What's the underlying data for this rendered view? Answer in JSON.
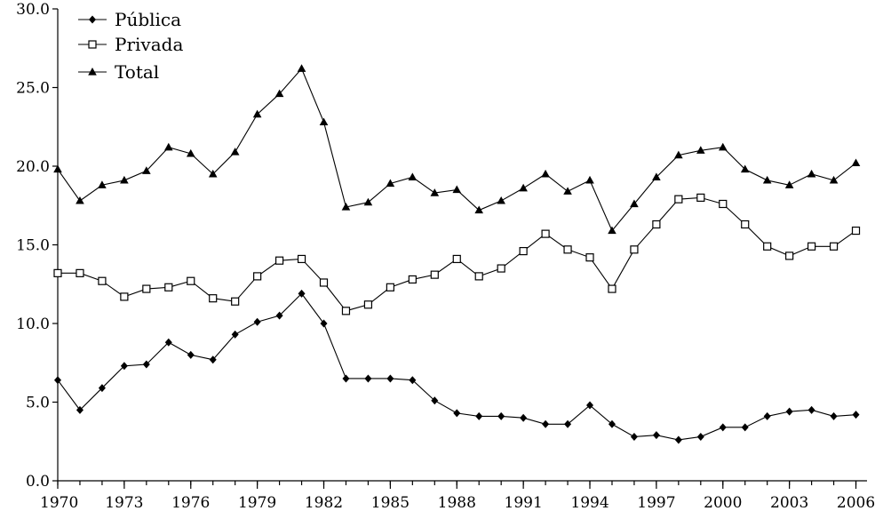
{
  "chart_data": {
    "type": "line",
    "title": "",
    "xlabel": "",
    "ylabel": "",
    "x": [
      1970,
      1971,
      1972,
      1973,
      1974,
      1975,
      1976,
      1977,
      1978,
      1979,
      1980,
      1981,
      1982,
      1983,
      1984,
      1985,
      1986,
      1987,
      1988,
      1989,
      1990,
      1991,
      1992,
      1993,
      1994,
      1995,
      1996,
      1997,
      1998,
      1999,
      2000,
      2001,
      2002,
      2003,
      2004,
      2005,
      2006
    ],
    "xlim": [
      1970,
      2006.5
    ],
    "ylim": [
      0,
      30
    ],
    "x_ticks": [
      "1970",
      "1973",
      "1976",
      "1979",
      "1982",
      "1985",
      "1988",
      "1991",
      "1994",
      "1997",
      "2000",
      "2003",
      "2006"
    ],
    "y_ticks": [
      "0.0",
      "5.0",
      "10.0",
      "15.0",
      "20.0",
      "25.0",
      "30.0"
    ],
    "grid": false,
    "legend_position": "top-left",
    "series": [
      {
        "name": "Pública",
        "marker": "diamond",
        "values": [
          6.4,
          4.5,
          5.9,
          7.3,
          7.4,
          8.8,
          8.0,
          7.7,
          9.3,
          10.1,
          10.5,
          11.9,
          10.0,
          6.5,
          6.5,
          6.5,
          6.4,
          5.1,
          4.3,
          4.1,
          4.1,
          4.0,
          3.6,
          3.6,
          4.8,
          3.6,
          2.8,
          2.9,
          2.6,
          2.8,
          3.4,
          3.4,
          4.1,
          4.4,
          4.5,
          4.1,
          4.2
        ]
      },
      {
        "name": "Privada",
        "marker": "square-open",
        "values": [
          13.2,
          13.2,
          12.7,
          11.7,
          12.2,
          12.3,
          12.7,
          11.6,
          11.4,
          13.0,
          14.0,
          14.1,
          12.6,
          10.8,
          11.2,
          12.3,
          12.8,
          13.1,
          14.1,
          13.0,
          13.5,
          14.6,
          15.7,
          14.7,
          14.2,
          12.2,
          14.7,
          16.3,
          17.9,
          18.0,
          17.6,
          16.3,
          14.9,
          14.3,
          14.9,
          14.9,
          15.9
        ]
      },
      {
        "name": "Total",
        "marker": "triangle",
        "values": [
          19.8,
          17.8,
          18.8,
          19.1,
          19.7,
          21.2,
          20.8,
          19.5,
          20.9,
          23.3,
          24.6,
          26.2,
          22.8,
          17.4,
          17.7,
          18.9,
          19.3,
          18.3,
          18.5,
          17.2,
          17.8,
          18.6,
          19.5,
          18.4,
          19.1,
          15.9,
          17.6,
          19.3,
          20.7,
          21.0,
          21.2,
          19.8,
          19.1,
          18.8,
          19.5,
          19.1,
          20.2
        ]
      }
    ]
  }
}
